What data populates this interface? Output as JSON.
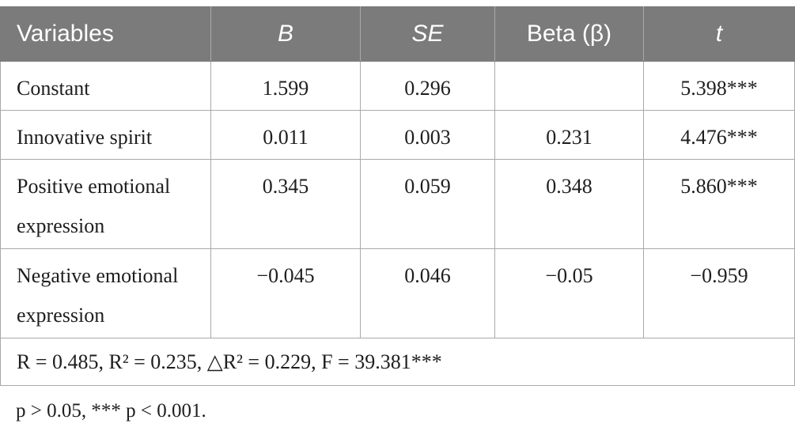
{
  "table": {
    "headers": [
      "Variables",
      "B",
      "SE",
      "Beta (β)",
      "t"
    ],
    "rows": [
      {
        "variable": "Constant",
        "b": "1.599",
        "se": "0.296",
        "beta": "",
        "t": "5.398***"
      },
      {
        "variable": "Innovative spirit",
        "b": "0.011",
        "se": "0.003",
        "beta": "0.231",
        "t": "4.476***"
      },
      {
        "variable": "Positive emotional expression",
        "b": "0.345",
        "se": "0.059",
        "beta": "0.348",
        "t": "5.860***"
      },
      {
        "variable": "Negative emotional expression",
        "b": "−0.045",
        "se": "0.046",
        "beta": "−0.05",
        "t": "−0.959"
      }
    ],
    "stats": "R = 0.485, R² = 0.235, △R² = 0.229, F = 39.381***"
  },
  "footnote": "p > 0.05, *** p < 0.001.",
  "colors": {
    "header_background": "#7b7b7b",
    "header_text": "#ffffff",
    "border": "#a9a9a9"
  }
}
